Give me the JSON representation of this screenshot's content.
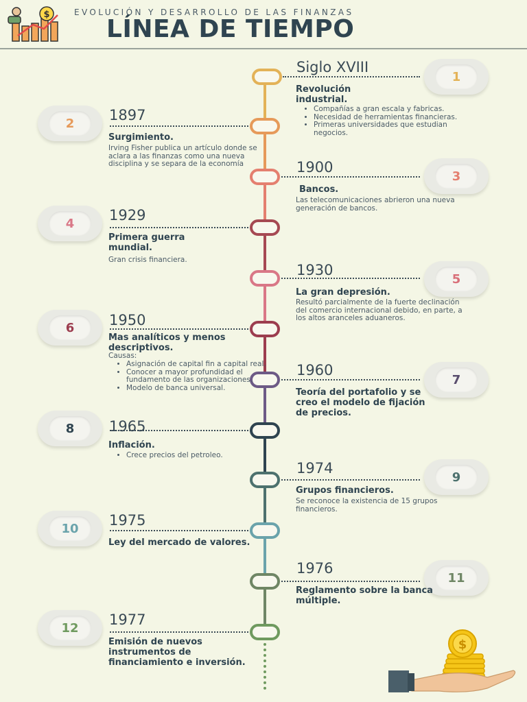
{
  "header": {
    "subtitle": "EVOLUCIÓN Y DESARROLLO DE LAS FINANZAS",
    "title": "LÍNEA DE TIEMPO",
    "logo_icon": "finance-growth-icon"
  },
  "footer": {
    "icon": "hand-holding-coins-icon"
  },
  "colors": {
    "c1": "#e3b257",
    "c2": "#e69a5a",
    "c3": "#e47f6f",
    "c4": "#a64953",
    "c5": "#d97787",
    "c6": "#9c3d4f",
    "c7": "#6d5a86",
    "c8": "#2f4450",
    "c9": "#4d716e",
    "c10": "#6aa3ab",
    "c11": "#6f8665",
    "c12": "#6f9a5f"
  },
  "events": [
    {
      "num": "1",
      "year": "Siglo XVIII",
      "title": "Revolución industrial.",
      "bullets": [
        "Compañías a gran escala y fabricas.",
        "Necesidad de herramientas financieras.",
        "Primeras universidades que estudian negocios."
      ]
    },
    {
      "num": "2",
      "year": "1897",
      "title": "Surgimiento.",
      "desc": "Irving Fisher publica un artículo donde se aclara a las finanzas como una nueva disciplina y se separa de la economía"
    },
    {
      "num": "3",
      "year": "1900",
      "title": "Bancos.",
      "desc": "Las telecomunicaciones abrieron una nueva generación de bancos."
    },
    {
      "num": "4",
      "year": "1929",
      "title": "Primera guerra mundial.",
      "desc": "Gran crisis financiera."
    },
    {
      "num": "5",
      "year": "1930",
      "title": "La gran depresión.",
      "desc": "Resultó parcialmente de la fuerte declinación del comercio internacional debido, en parte, a los altos aranceles aduaneros."
    },
    {
      "num": "6",
      "year": "1950",
      "title": "Mas analíticos y menos descriptivos.",
      "desc": "Causas:",
      "bullets": [
        "Asignación de capital fin a capital real.",
        "Conocer a mayor profundidad el fundamento de las organizaciones.",
        "Modelo de banca universal."
      ]
    },
    {
      "num": "7",
      "year": "1960",
      "title": "Teoría del portafolio y se creo el modelo de fijación de precios."
    },
    {
      "num": "8",
      "year": "1965",
      "title": "Inflación.",
      "bullets": [
        "Crece precios del petroleo."
      ]
    },
    {
      "num": "9",
      "year": "1974",
      "title": "Grupos financieros.",
      "desc": "Se reconoce la existencia de 15 grupos financieros."
    },
    {
      "num": "10",
      "year": "1975",
      "title": "Ley del mercado de valores."
    },
    {
      "num": "11",
      "year": "1976",
      "title": "Reglamento sobre la banca múltiple."
    },
    {
      "num": "12",
      "year": "1977",
      "title": "Emisión de nuevos instrumentos de financiamiento e inversión."
    }
  ]
}
